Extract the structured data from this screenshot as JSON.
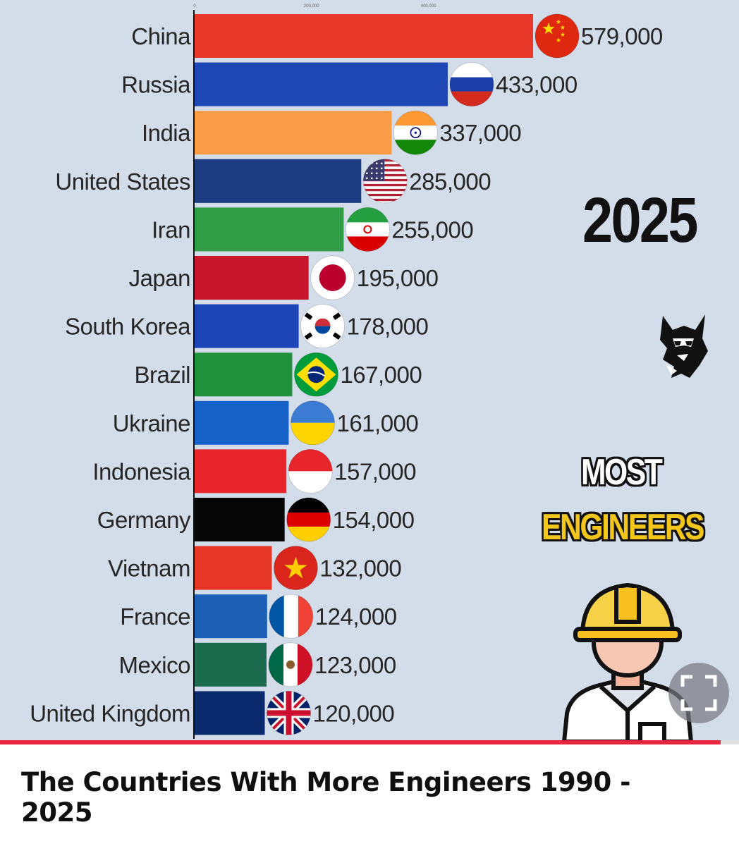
{
  "video": {
    "title": "The Countries With More Engineers 1990 - 2025",
    "progress_fraction": 0.975
  },
  "overlay": {
    "year": "2025",
    "heading_line1": "MOST",
    "heading_line2": "ENGINEERS",
    "logo_icon": "wolf-sunglasses-logo",
    "illustration_icon": "engineer-hardhat-icon",
    "fullscreen_icon": "fullscreen-icon"
  },
  "chart_data": {
    "type": "bar",
    "orientation": "horizontal",
    "title": "",
    "xlabel": "",
    "ylabel": "",
    "xlim": [
      0,
      600000
    ],
    "x_ticks": [
      0,
      200000,
      400000
    ],
    "grid": false,
    "legend": "none",
    "categories": [
      "China",
      "Russia",
      "India",
      "United States",
      "Iran",
      "Japan",
      "South Korea",
      "Brazil",
      "Ukraine",
      "Indonesia",
      "Germany",
      "Vietnam",
      "France",
      "Mexico",
      "United Kingdom"
    ],
    "values": [
      579000,
      433000,
      337000,
      285000,
      255000,
      195000,
      178000,
      167000,
      161000,
      157000,
      154000,
      132000,
      124000,
      123000,
      120000
    ],
    "value_labels": [
      "579,000",
      "433,000",
      "337,000",
      "285,000",
      "255,000",
      "195,000",
      "178,000",
      "167,000",
      "161,000",
      "157,000",
      "154,000",
      "132,000",
      "124,000",
      "123,000",
      "120,000"
    ],
    "colors": [
      "#e8382a",
      "#1e46b4",
      "#fb9d48",
      "#1c3c82",
      "#2f9d45",
      "#c8162d",
      "#1c44b4",
      "#22913b",
      "#1762c8",
      "#e8252b",
      "#060606",
      "#e63626",
      "#1c5fb4",
      "#1d6b4f",
      "#0b2a6e"
    ],
    "flags": [
      "china-flag",
      "russia-flag",
      "india-flag",
      "usa-flag",
      "iran-flag",
      "japan-flag",
      "south-korea-flag",
      "brazil-flag",
      "ukraine-flag",
      "indonesia-flag",
      "germany-flag",
      "vietnam-flag",
      "france-flag",
      "mexico-flag",
      "uk-flag"
    ]
  }
}
